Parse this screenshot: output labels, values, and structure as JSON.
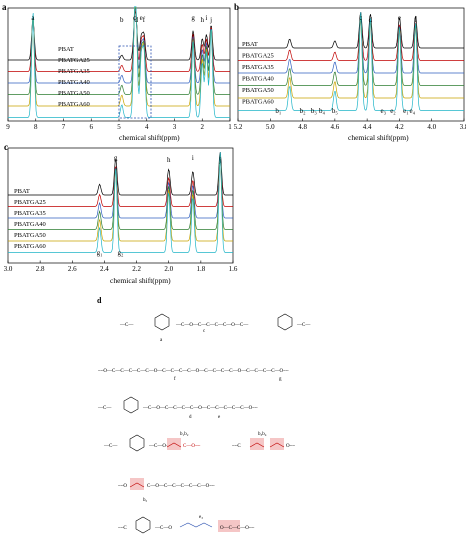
{
  "panels": [
    {
      "id": "a",
      "panel_label": "a",
      "x_axis": {
        "title": "chemical shift(ppm)",
        "min": 1,
        "max": 9,
        "reversed": true,
        "ticks": [
          "9",
          "8",
          "7",
          "6",
          "5",
          "4",
          "3",
          "2",
          "1"
        ]
      },
      "legend": [
        "PBAT",
        "PBATGA25",
        "PBATGA35",
        "PBATGA40",
        "PBATGA50",
        "PBATGA60"
      ],
      "peak_labels": [
        {
          "text": "a",
          "ppm": 8.1
        },
        {
          "text": "b",
          "ppm": 4.9
        },
        {
          "text": "c",
          "ppm": 4.44
        },
        {
          "text": "d",
          "ppm": 4.38
        },
        {
          "text": "e",
          "ppm": 4.2
        },
        {
          "text": "f",
          "ppm": 4.1
        },
        {
          "text": "g",
          "ppm": 2.33
        },
        {
          "text": "h",
          "ppm": 2.0
        },
        {
          "text": "i",
          "ppm": 1.85
        },
        {
          "text": "j",
          "ppm": 1.68
        }
      ]
    },
    {
      "id": "b",
      "panel_label": "b",
      "x_axis": {
        "title": "chemical shift(ppm)",
        "min": 3.8,
        "max": 5.2,
        "reversed": true,
        "ticks": [
          "5.2",
          "5.0",
          "4.8",
          "4.6",
          "4.4",
          "4.2",
          "4.0",
          "3.8"
        ]
      },
      "legend": [
        "PBAT",
        "PBATGA25",
        "PBATGA35",
        "PBATGA40",
        "PBATGA50",
        "PBATGA60"
      ],
      "peak_labels": [
        {
          "text": "c",
          "ppm": 4.44
        },
        {
          "text": "d",
          "ppm": 4.38
        },
        {
          "text": "e",
          "ppm": 4.2
        },
        {
          "text": "f",
          "ppm": 4.1
        },
        {
          "text": "b₁",
          "ppm": 4.95
        },
        {
          "text": "b₂",
          "ppm": 4.8
        },
        {
          "text": "b₃",
          "ppm": 4.73
        },
        {
          "text": "b₄",
          "ppm": 4.68
        },
        {
          "text": "b₅",
          "ppm": 4.6
        },
        {
          "text": "e₃",
          "ppm": 4.3
        },
        {
          "text": "e₂",
          "ppm": 4.24
        },
        {
          "text": "e₁",
          "ppm": 4.16
        },
        {
          "text": "e₄",
          "ppm": 4.12
        }
      ]
    },
    {
      "id": "c",
      "panel_label": "c",
      "x_axis": {
        "title": "chemical shift(ppm)",
        "min": 1.6,
        "max": 3.0,
        "reversed": true,
        "ticks": [
          "3.0",
          "2.8",
          "2.6",
          "2.4",
          "2.2",
          "2.0",
          "1.8",
          "1.6"
        ]
      },
      "legend": [
        "PBAT",
        "PBATGA25",
        "PBATGA35",
        "PBATGA40",
        "PBATGA50",
        "PBATGA60"
      ],
      "peak_labels": [
        {
          "text": "g",
          "ppm": 2.33
        },
        {
          "text": "h",
          "ppm": 2.0
        },
        {
          "text": "i",
          "ppm": 1.85
        },
        {
          "text": "j",
          "ppm": 1.68
        },
        {
          "text": "g₁",
          "ppm": 2.43
        },
        {
          "text": "g₂",
          "ppm": 2.3
        }
      ]
    }
  ],
  "series_colors": [
    "#000000",
    "#c00000",
    "#3060c0",
    "#2e7d32",
    "#c9a400",
    "#20b5c8"
  ],
  "chart_data": [
    {
      "type": "line",
      "panel": "a",
      "xlabel": "chemical shift(ppm)",
      "xlim": [
        9,
        1
      ],
      "series_names": [
        "PBAT",
        "PBATGA25",
        "PBATGA35",
        "PBATGA40",
        "PBATGA50",
        "PBATGA60"
      ],
      "peaks_ppm": [
        {
          "ppm": 8.1,
          "intensity": 1.0
        },
        {
          "ppm": 4.9,
          "intensity": 0.12
        },
        {
          "ppm": 4.44,
          "intensity": 0.75
        },
        {
          "ppm": 4.38,
          "intensity": 0.72
        },
        {
          "ppm": 4.2,
          "intensity": 0.55
        },
        {
          "ppm": 4.1,
          "intensity": 0.6
        },
        {
          "ppm": 2.33,
          "intensity": 0.72
        },
        {
          "ppm": 2.0,
          "intensity": 0.52
        },
        {
          "ppm": 1.85,
          "intensity": 0.62
        },
        {
          "ppm": 1.68,
          "intensity": 0.86
        }
      ]
    },
    {
      "type": "line",
      "panel": "b",
      "xlabel": "chemical shift(ppm)",
      "xlim": [
        5.2,
        3.8
      ],
      "series_names": [
        "PBAT",
        "PBATGA25",
        "PBATGA35",
        "PBATGA40",
        "PBATGA50",
        "PBATGA60"
      ],
      "peaks_ppm": [
        {
          "ppm": 4.44,
          "intensity": 1.0
        },
        {
          "ppm": 4.38,
          "intensity": 0.95
        },
        {
          "ppm": 4.2,
          "intensity": 0.85
        },
        {
          "ppm": 4.1,
          "intensity": 0.9
        },
        {
          "ppm": 4.88,
          "intensity": 0.25
        },
        {
          "ppm": 4.6,
          "intensity": 0.2
        }
      ]
    },
    {
      "type": "line",
      "panel": "c",
      "xlabel": "chemical shift(ppm)",
      "xlim": [
        3.0,
        1.6
      ],
      "series_names": [
        "PBAT",
        "PBATGA25",
        "PBATGA35",
        "PBATGA40",
        "PBATGA50",
        "PBATGA60"
      ],
      "peaks_ppm": [
        {
          "ppm": 2.33,
          "intensity": 0.85
        },
        {
          "ppm": 2.0,
          "intensity": 0.6
        },
        {
          "ppm": 1.85,
          "intensity": 0.55
        },
        {
          "ppm": 1.68,
          "intensity": 1.0
        },
        {
          "ppm": 2.43,
          "intensity": 0.25
        }
      ]
    }
  ],
  "panel_d": {
    "panel_label": "d",
    "structure_labels": [
      "a",
      "c",
      "f",
      "g",
      "d",
      "e",
      "b₁b₂",
      "b₃b₄",
      "b₅",
      "e₃"
    ]
  }
}
